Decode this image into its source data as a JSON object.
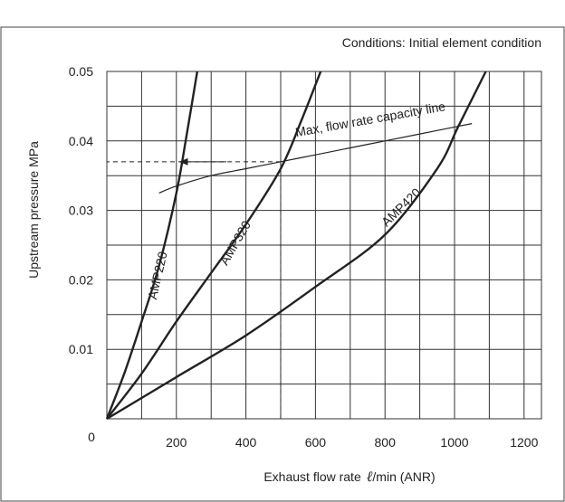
{
  "chart_data": {
    "type": "line",
    "title": "",
    "conditions_note": "Conditions: Initial element condition",
    "xlabel": "Exhaust flow rate",
    "xlabel_unit_symbol": "ℓ",
    "xlabel_unit_rest": "/min (ANR)",
    "ylabel": "Upstream pressure  MPa",
    "xlim": [
      0,
      1250
    ],
    "ylim": [
      0,
      0.05
    ],
    "x_ticks": [
      0,
      200,
      400,
      600,
      800,
      1000,
      1200
    ],
    "x_tick_labels": [
      "0",
      "200",
      "400",
      "600",
      "800",
      "1000",
      "1200"
    ],
    "y_ticks": [
      0.01,
      0.02,
      0.03,
      0.04,
      0.05
    ],
    "y_tick_labels": [
      "0.01",
      "0.02",
      "0.03",
      "0.04",
      "0.05"
    ],
    "grid": true,
    "series": [
      {
        "name": "AMP220",
        "points": [
          [
            0,
            0
          ],
          [
            50,
            0.0065
          ],
          [
            100,
            0.014
          ],
          [
            150,
            0.022
          ],
          [
            200,
            0.0325
          ],
          [
            230,
            0.041
          ],
          [
            260,
            0.05
          ]
        ]
      },
      {
        "name": "AMP320",
        "points": [
          [
            0,
            0
          ],
          [
            100,
            0.0065
          ],
          [
            200,
            0.014
          ],
          [
            300,
            0.021
          ],
          [
            400,
            0.028
          ],
          [
            500,
            0.036
          ],
          [
            560,
            0.043
          ],
          [
            615,
            0.05
          ]
        ]
      },
      {
        "name": "AMP420",
        "points": [
          [
            0,
            0
          ],
          [
            200,
            0.006
          ],
          [
            400,
            0.012
          ],
          [
            600,
            0.019
          ],
          [
            800,
            0.0265
          ],
          [
            950,
            0.036
          ],
          [
            1010,
            0.042
          ],
          [
            1090,
            0.05
          ]
        ]
      }
    ],
    "capacity_line": {
      "label": "Max, flow rate capacity  line",
      "points": [
        [
          150,
          0.0325
        ],
        [
          200,
          0.0335
        ],
        [
          300,
          0.035
        ],
        [
          400,
          0.036
        ],
        [
          500,
          0.037
        ],
        [
          600,
          0.038
        ],
        [
          700,
          0.039
        ],
        [
          800,
          0.04
        ],
        [
          900,
          0.041
        ],
        [
          1000,
          0.042
        ],
        [
          1050,
          0.0425
        ]
      ]
    },
    "example": {
      "x": 500,
      "y": 0.037,
      "arrow_to_x": 210
    },
    "origin_label": "0"
  }
}
